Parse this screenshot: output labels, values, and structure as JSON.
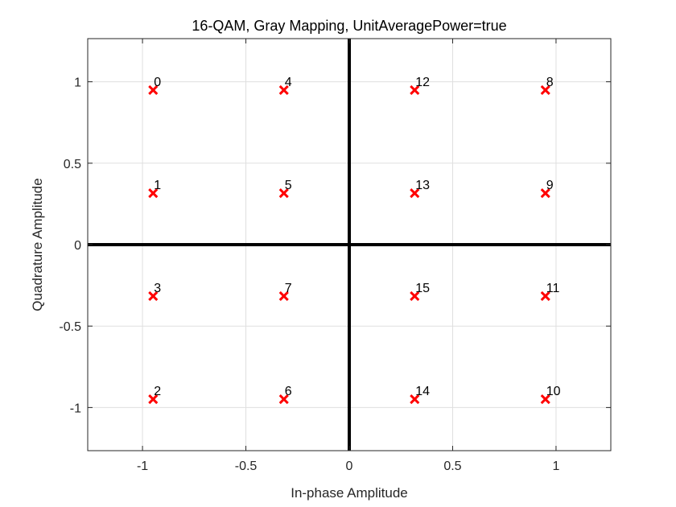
{
  "chart_data": {
    "type": "scatter",
    "title": "16-QAM, Gray Mapping, UnitAveragePower=true",
    "xlabel": "In-phase Amplitude",
    "ylabel": "Quadrature Amplitude",
    "xlim": [
      -1.2649,
      1.2649
    ],
    "ylim": [
      -1.2649,
      1.2649
    ],
    "xticks": [
      -1,
      -0.5,
      0,
      0.5,
      1
    ],
    "xtick_labels": [
      "-1",
      "-0.5",
      "0",
      "0.5",
      "1"
    ],
    "yticks": [
      -1,
      -0.5,
      0,
      0.5,
      1
    ],
    "ytick_labels": [
      "-1",
      "-0.5",
      "0",
      "0.5",
      "1"
    ],
    "grid": true,
    "marker": "x",
    "marker_color": "#ff0000",
    "zero_lines_color": "#000000",
    "points": [
      {
        "x": -0.9487,
        "y": 0.9487,
        "label": "0"
      },
      {
        "x": -0.9487,
        "y": 0.3162,
        "label": "1"
      },
      {
        "x": -0.9487,
        "y": -0.9487,
        "label": "2"
      },
      {
        "x": -0.9487,
        "y": -0.3162,
        "label": "3"
      },
      {
        "x": -0.3162,
        "y": 0.9487,
        "label": "4"
      },
      {
        "x": -0.3162,
        "y": 0.3162,
        "label": "5"
      },
      {
        "x": -0.3162,
        "y": -0.9487,
        "label": "6"
      },
      {
        "x": -0.3162,
        "y": -0.3162,
        "label": "7"
      },
      {
        "x": 0.9487,
        "y": 0.9487,
        "label": "8"
      },
      {
        "x": 0.9487,
        "y": 0.3162,
        "label": "9"
      },
      {
        "x": 0.9487,
        "y": -0.9487,
        "label": "10"
      },
      {
        "x": 0.9487,
        "y": -0.3162,
        "label": "11"
      },
      {
        "x": 0.3162,
        "y": 0.9487,
        "label": "12"
      },
      {
        "x": 0.3162,
        "y": 0.3162,
        "label": "13"
      },
      {
        "x": 0.3162,
        "y": -0.9487,
        "label": "14"
      },
      {
        "x": 0.3162,
        "y": -0.3162,
        "label": "15"
      }
    ]
  }
}
